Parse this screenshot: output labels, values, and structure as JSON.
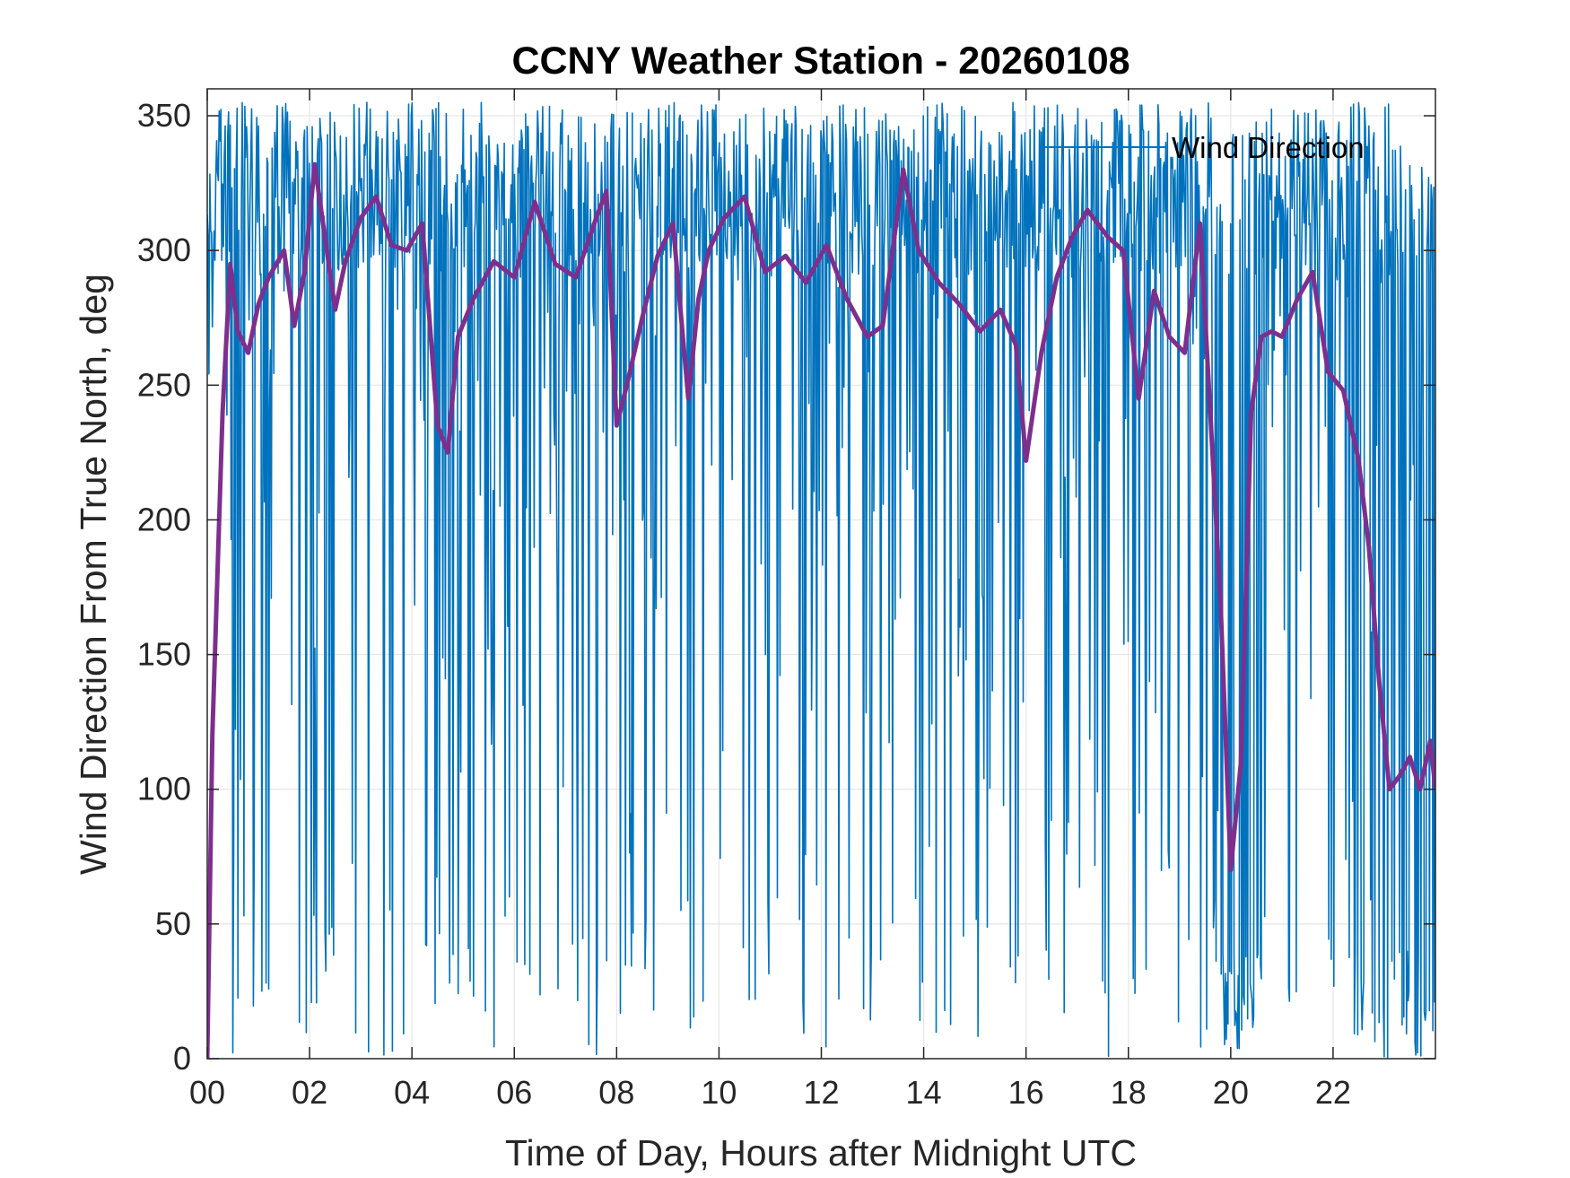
{
  "chart_data": {
    "type": "line",
    "title": "CCNY Weather Station - 20260108",
    "xlabel": "Time of Day, Hours after Midnight UTC",
    "ylabel": "Wind Direction From True North, deg",
    "xlim": [
      0,
      24
    ],
    "ylim": [
      0,
      360
    ],
    "xticks": [
      0,
      2,
      4,
      6,
      8,
      10,
      12,
      14,
      16,
      18,
      20,
      22
    ],
    "xtick_labels": [
      "00",
      "02",
      "04",
      "06",
      "08",
      "10",
      "12",
      "14",
      "16",
      "18",
      "20",
      "22"
    ],
    "yticks": [
      0,
      50,
      100,
      150,
      200,
      250,
      300,
      350
    ],
    "ytick_labels": [
      "0",
      "50",
      "100",
      "150",
      "200",
      "250",
      "300",
      "350"
    ],
    "grid": true,
    "legend": {
      "location": "top-right",
      "entries": [
        "Wind Direction"
      ]
    },
    "series": [
      {
        "name": "Wind Direction",
        "color": "#0072bd",
        "style": "raw high-frequency 1-minute samples oscillating between roughly 0 and 355 deg",
        "seed": 20260108
      },
      {
        "name": "",
        "color": "#7e2f8e",
        "style": "smoothed running mean",
        "x": [
          0,
          0.1,
          0.3,
          0.45,
          0.6,
          0.8,
          1.0,
          1.2,
          1.5,
          1.7,
          1.9,
          2.1,
          2.3,
          2.5,
          2.7,
          3.0,
          3.3,
          3.6,
          3.9,
          4.2,
          4.5,
          4.7,
          4.9,
          5.2,
          5.6,
          6.0,
          6.4,
          6.8,
          7.2,
          7.6,
          7.8,
          8.0,
          8.2,
          8.5,
          8.8,
          9.1,
          9.4,
          9.6,
          9.8,
          10.1,
          10.5,
          10.9,
          11.3,
          11.7,
          12.1,
          12.5,
          12.9,
          13.2,
          13.6,
          13.9,
          14.3,
          14.7,
          15.1,
          15.5,
          15.8,
          16.0,
          16.3,
          16.6,
          16.9,
          17.2,
          17.6,
          17.9,
          18.2,
          18.5,
          18.8,
          19.1,
          19.4,
          19.6,
          19.8,
          20.0,
          20.2,
          20.4,
          20.6,
          20.8,
          21.0,
          21.3,
          21.6,
          21.9,
          22.2,
          22.5,
          22.7,
          22.9,
          23.1,
          23.3,
          23.5,
          23.7,
          23.9,
          24.0
        ],
        "values": [
          0,
          120,
          240,
          295,
          270,
          262,
          280,
          290,
          300,
          272,
          292,
          332,
          305,
          278,
          296,
          312,
          320,
          302,
          300,
          310,
          235,
          225,
          268,
          282,
          296,
          290,
          318,
          295,
          290,
          312,
          322,
          235,
          250,
          275,
          298,
          310,
          245,
          282,
          300,
          312,
          320,
          292,
          298,
          288,
          302,
          282,
          268,
          272,
          330,
          300,
          288,
          280,
          270,
          278,
          265,
          222,
          262,
          290,
          305,
          315,
          305,
          300,
          245,
          285,
          268,
          262,
          310,
          240,
          170,
          70,
          110,
          240,
          268,
          270,
          268,
          282,
          292,
          255,
          248,
          222,
          190,
          140,
          100,
          105,
          112,
          100,
          118,
          100
        ]
      }
    ]
  }
}
